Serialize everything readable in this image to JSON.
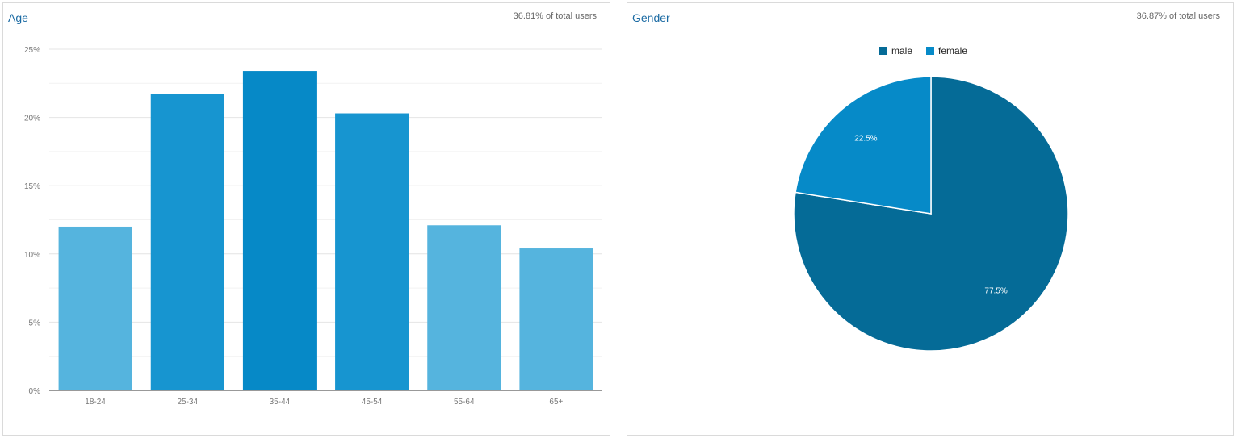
{
  "age_panel": {
    "title": "Age",
    "share": "36.81% of total users"
  },
  "gender_panel": {
    "title": "Gender",
    "share": "36.87% of total users"
  },
  "chart_data": [
    {
      "type": "bar",
      "title": "Age",
      "categories": [
        "18-24",
        "25-34",
        "35-44",
        "45-54",
        "55-64",
        "65+"
      ],
      "values": [
        12.0,
        21.7,
        23.4,
        20.3,
        12.1,
        10.4
      ],
      "value_unit": "%",
      "ylim": [
        0,
        25
      ],
      "yticks": [
        0,
        5,
        10,
        15,
        20,
        25
      ],
      "ytick_labels": [
        "0%",
        "5%",
        "10%",
        "15%",
        "20%",
        "25%"
      ],
      "grid": true,
      "colors": [
        "#55b4de",
        "#1795d0",
        "#0689c7",
        "#1795d0",
        "#55b4de",
        "#55b4de"
      ]
    },
    {
      "type": "pie",
      "title": "Gender",
      "labels": [
        "male",
        "female"
      ],
      "values": [
        77.5,
        22.5
      ],
      "value_labels": [
        "77.5%",
        "22.5%"
      ],
      "colors": [
        "#056b97",
        "#068ac8"
      ],
      "legend": "top-center"
    }
  ]
}
